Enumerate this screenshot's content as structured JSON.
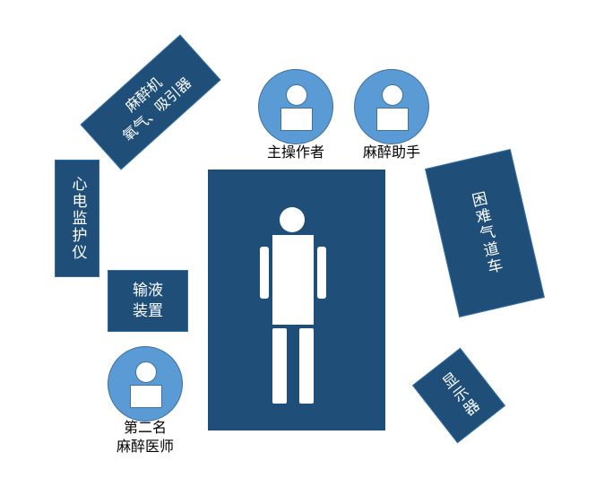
{
  "labels": {
    "anesthesia_machine": "麻醉机\n氧气、吸引器",
    "ecg_monitor": "心电监护仪",
    "infusion_device": "输液\n装置",
    "difficult_airway_cart": "困难气道车",
    "display": "显示器",
    "main_operator": "主操作者",
    "anesthesia_assistant": "麻醉助手",
    "second_anesthesiologist": "第二名\n麻醉医师"
  },
  "colors": {
    "box_fill": "#1f4e79",
    "person_fill": "#5b9bd5",
    "figure_fill": "#ffffff"
  }
}
